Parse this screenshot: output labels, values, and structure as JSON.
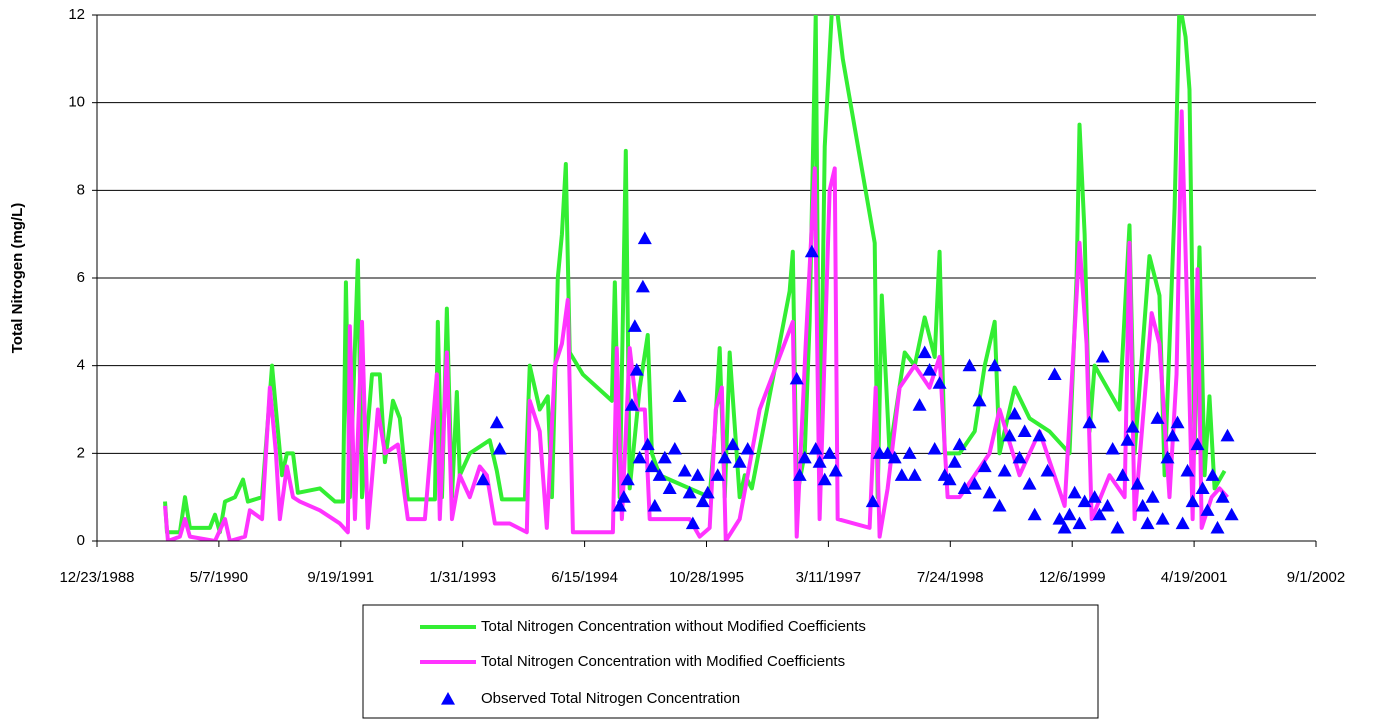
{
  "chart_data": {
    "type": "line",
    "ylabel": "Total Nitrogen (mg/L)",
    "xlim": [
      32500,
      37500
    ],
    "xticks": [
      {
        "value": 32500,
        "label": "12/23/1988"
      },
      {
        "value": 33000,
        "label": "5/7/1990"
      },
      {
        "value": 33500,
        "label": "9/19/1991"
      },
      {
        "value": 34000,
        "label": "1/31/1993"
      },
      {
        "value": 34500,
        "label": "6/15/1994"
      },
      {
        "value": 35000,
        "label": "10/28/1995"
      },
      {
        "value": 35500,
        "label": "3/11/1997"
      },
      {
        "value": 36000,
        "label": "7/24/1998"
      },
      {
        "value": 36500,
        "label": "12/6/1999"
      },
      {
        "value": 37000,
        "label": "4/19/2001"
      },
      {
        "value": 37500,
        "label": "9/1/2002"
      }
    ],
    "ylim": [
      0,
      12
    ],
    "yticks": [
      0,
      2,
      4,
      6,
      8,
      10,
      12
    ],
    "grid": true,
    "legend": "bottom",
    "series": [
      {
        "name": "Total Nitrogen Concentration without Modified Coefficients",
        "color": "#33ee33",
        "style": "line",
        "x": [
          32779,
          32787,
          32840,
          32861,
          32881,
          32963,
          32984,
          33004,
          33025,
          33066,
          33099,
          33119,
          33177,
          33218,
          33234,
          33259,
          33279,
          33304,
          33324,
          33414,
          33476,
          33509,
          33521,
          33537,
          33570,
          33587,
          33628,
          33660,
          33681,
          33714,
          33742,
          33775,
          33886,
          33898,
          33915,
          33935,
          33956,
          33976,
          33988,
          34029,
          34111,
          34140,
          34161,
          34255,
          34275,
          34316,
          34349,
          34366,
          34390,
          34407,
          34423,
          34439,
          34493,
          34612,
          34624,
          34644,
          34669,
          34685,
          34726,
          34759,
          34776,
          34808,
          35013,
          35034,
          35054,
          35075,
          35095,
          35136,
          35157,
          35186,
          35341,
          35354,
          35370,
          35403,
          35423,
          35448,
          35464,
          35485,
          35518,
          35538,
          35559,
          35690,
          35702,
          35719,
          35751,
          35813,
          35854,
          35895,
          35936,
          35956,
          35977,
          36038,
          36100,
          36141,
          36182,
          36202,
          36264,
          36325,
          36407,
          36489,
          36518,
          36530,
          36551,
          36571,
          36592,
          36694,
          36735,
          36756,
          36817,
          36858,
          36879,
          36920,
          36940,
          36965,
          36981,
          37002,
          37022,
          37043,
          37063,
          37084,
          37125
        ],
        "values": [
          0.9,
          0.2,
          0.2,
          1.0,
          0.3,
          0.3,
          0.6,
          0.2,
          0.9,
          1.0,
          1.4,
          0.9,
          1.0,
          4.0,
          3.0,
          1.5,
          2.0,
          2.0,
          1.1,
          1.2,
          0.9,
          0.9,
          5.9,
          1.0,
          6.4,
          1.0,
          3.8,
          3.8,
          1.8,
          3.2,
          2.8,
          0.95,
          0.95,
          5.0,
          1.0,
          5.3,
          1.0,
          3.4,
          1.5,
          2.0,
          2.3,
          1.6,
          0.95,
          0.95,
          4.0,
          3.0,
          3.3,
          1.0,
          6.0,
          7.0,
          8.6,
          4.3,
          3.8,
          3.2,
          5.9,
          1.0,
          8.9,
          1.2,
          3.5,
          4.7,
          2.0,
          1.5,
          1.0,
          2.5,
          4.4,
          1.0,
          4.3,
          1.0,
          1.5,
          1.2,
          5.7,
          6.6,
          1.0,
          2.0,
          5.0,
          12.0,
          1.0,
          9.0,
          12.5,
          12.0,
          11.0,
          6.8,
          1.0,
          5.6,
          2.0,
          4.3,
          4.0,
          5.1,
          4.2,
          6.6,
          2.0,
          2.0,
          2.5,
          4.0,
          5.0,
          2.0,
          3.5,
          2.8,
          2.5,
          2.0,
          6.0,
          9.5,
          7.0,
          2.5,
          4.0,
          3.0,
          7.2,
          2.0,
          6.5,
          5.6,
          1.5,
          7.6,
          12.3,
          11.5,
          10.3,
          2.0,
          6.7,
          1.5,
          3.3,
          1.2,
          1.6
        ]
      },
      {
        "name": "Total Nitrogen Concentration with Modified Coefficients",
        "color": "#ff33ff",
        "style": "line",
        "x": [
          32779,
          32791,
          32840,
          32861,
          32881,
          32984,
          33025,
          33045,
          33107,
          33127,
          33177,
          33209,
          33234,
          33250,
          33279,
          33304,
          33332,
          33414,
          33496,
          33529,
          33537,
          33558,
          33587,
          33611,
          33652,
          33681,
          33734,
          33775,
          33845,
          33894,
          33906,
          33935,
          33956,
          33988,
          34029,
          34070,
          34099,
          34132,
          34193,
          34263,
          34275,
          34316,
          34345,
          34378,
          34407,
          34431,
          34452,
          34616,
          34632,
          34653,
          34685,
          34714,
          34747,
          34767,
          34931,
          34972,
          35013,
          35038,
          35063,
          35079,
          35136,
          35218,
          35354,
          35370,
          35407,
          35444,
          35464,
          35505,
          35526,
          35538,
          35669,
          35694,
          35710,
          35743,
          35792,
          35854,
          35915,
          35956,
          35989,
          36038,
          36100,
          36161,
          36202,
          36284,
          36366,
          36469,
          36510,
          36530,
          36559,
          36580,
          36653,
          36715,
          36735,
          36756,
          36826,
          36858,
          36899,
          36928,
          36949,
          36973,
          36994,
          37014,
          37031,
          37072,
          37104,
          37137
        ],
        "values": [
          0.8,
          0,
          0.1,
          0.5,
          0.1,
          0,
          0.5,
          0,
          0.1,
          0.7,
          0.5,
          3.5,
          2.0,
          0.5,
          1.7,
          1.0,
          0.9,
          0.7,
          0.4,
          0.2,
          4.9,
          0.5,
          5.0,
          0.3,
          3.0,
          2.0,
          2.2,
          0.5,
          0.5,
          3.8,
          0.5,
          4.3,
          0.5,
          1.5,
          1.0,
          1.7,
          1.5,
          0.4,
          0.4,
          0.2,
          3.2,
          2.5,
          0.3,
          4.0,
          4.5,
          5.5,
          0.2,
          0.2,
          4.4,
          0.5,
          4.4,
          3.0,
          3.0,
          0.5,
          0.5,
          0.1,
          0.3,
          3.0,
          3.5,
          0,
          0.5,
          3.0,
          5.0,
          0.1,
          4.5,
          8.5,
          0.5,
          8.0,
          8.5,
          0.5,
          0.3,
          3.5,
          0.1,
          1.2,
          3.5,
          4.0,
          3.5,
          4.2,
          1.0,
          1.0,
          1.5,
          2.0,
          3.0,
          1.5,
          2.5,
          0.8,
          4.8,
          6.8,
          4.5,
          0.5,
          1.5,
          1.0,
          6.8,
          0.5,
          5.2,
          4.5,
          1.0,
          3.8,
          9.8,
          5.0,
          0.5,
          6.2,
          0.3,
          1.0,
          1.2,
          1.0
        ]
      },
      {
        "name": "Observed Total Nitrogen Concentration",
        "color": "#0000ff",
        "style": "marker",
        "x": [
          34083,
          34140,
          34152,
          34644,
          34661,
          34677,
          34694,
          34706,
          34714,
          34726,
          34739,
          34747,
          34759,
          34776,
          34788,
          34808,
          34829,
          34849,
          34870,
          34890,
          34911,
          34931,
          34944,
          34964,
          34985,
          35005,
          35046,
          35075,
          35108,
          35136,
          35169,
          35370,
          35382,
          35403,
          35432,
          35448,
          35464,
          35485,
          35505,
          35530,
          35682,
          35710,
          35743,
          35772,
          35801,
          35833,
          35854,
          35874,
          35895,
          35915,
          35936,
          35956,
          35977,
          35997,
          36018,
          36038,
          36059,
          36079,
          36100,
          36120,
          36141,
          36161,
          36182,
          36202,
          36223,
          36243,
          36264,
          36284,
          36305,
          36325,
          36346,
          36366,
          36399,
          36428,
          36448,
          36469,
          36489,
          36510,
          36530,
          36551,
          36571,
          36592,
          36612,
          36625,
          36645,
          36666,
          36686,
          36707,
          36727,
          36748,
          36768,
          36789,
          36809,
          36830,
          36850,
          36871,
          36891,
          36912,
          36932,
          36953,
          36973,
          36994,
          37014,
          37035,
          37055,
          37076,
          37096,
          37117,
          37137,
          37154
        ],
        "values": [
          1.4,
          2.7,
          2.1,
          0.8,
          1.0,
          1.4,
          3.1,
          4.9,
          3.9,
          1.9,
          5.8,
          6.9,
          2.2,
          1.7,
          0.8,
          1.5,
          1.9,
          1.2,
          2.1,
          3.3,
          1.6,
          1.1,
          0.4,
          1.5,
          0.9,
          1.1,
          1.5,
          1.9,
          2.2,
          1.8,
          2.1,
          3.7,
          1.5,
          1.9,
          6.6,
          2.1,
          1.8,
          1.4,
          2.0,
          1.6,
          0.9,
          2.0,
          2.0,
          1.9,
          1.5,
          2.0,
          1.5,
          3.1,
          4.3,
          3.9,
          2.1,
          3.6,
          1.5,
          1.4,
          1.8,
          2.2,
          1.2,
          4.0,
          1.3,
          3.2,
          1.7,
          1.1,
          4.0,
          0.8,
          1.6,
          2.4,
          2.9,
          1.9,
          2.5,
          1.3,
          0.6,
          2.4,
          1.6,
          3.8,
          0.5,
          0.3,
          0.6,
          1.1,
          0.4,
          0.9,
          2.7,
          1.0,
          0.6,
          4.2,
          0.8,
          2.1,
          0.3,
          1.5,
          2.3,
          2.6,
          1.3,
          0.8,
          0.4,
          1.0,
          2.8,
          0.5,
          1.9,
          2.4,
          2.7,
          0.4,
          1.6,
          0.9,
          2.2,
          1.2,
          0.7,
          1.5,
          0.3,
          1.0,
          2.4,
          0.6
        ]
      }
    ]
  }
}
